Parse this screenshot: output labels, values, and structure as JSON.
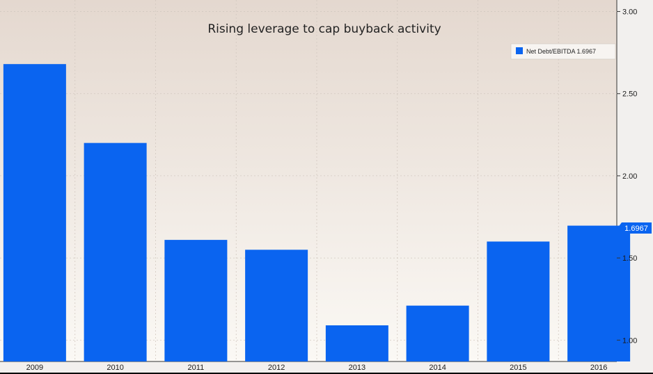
{
  "chart_data": {
    "type": "bar",
    "title": "Rising leverage to cap buyback activity",
    "categories": [
      "2009",
      "2010",
      "2011",
      "2012",
      "2013",
      "2014",
      "2015",
      "2016"
    ],
    "series": [
      {
        "name": "Net Debt/EBITDA",
        "values": [
          2.68,
          2.2,
          1.61,
          1.55,
          1.09,
          1.21,
          1.6,
          1.6967
        ],
        "color": "#0a64f0"
      }
    ],
    "legend": {
      "label": "Net Debt/EBITDA 1.6967",
      "position": "top-right"
    },
    "last_value_label": "1.6967",
    "y_axis": {
      "position": "right",
      "ticks": [
        "3.00",
        "2.50",
        "2.00",
        "1.50",
        "1.00"
      ],
      "ylim": [
        0.87,
        3.07
      ]
    },
    "grid": true
  }
}
